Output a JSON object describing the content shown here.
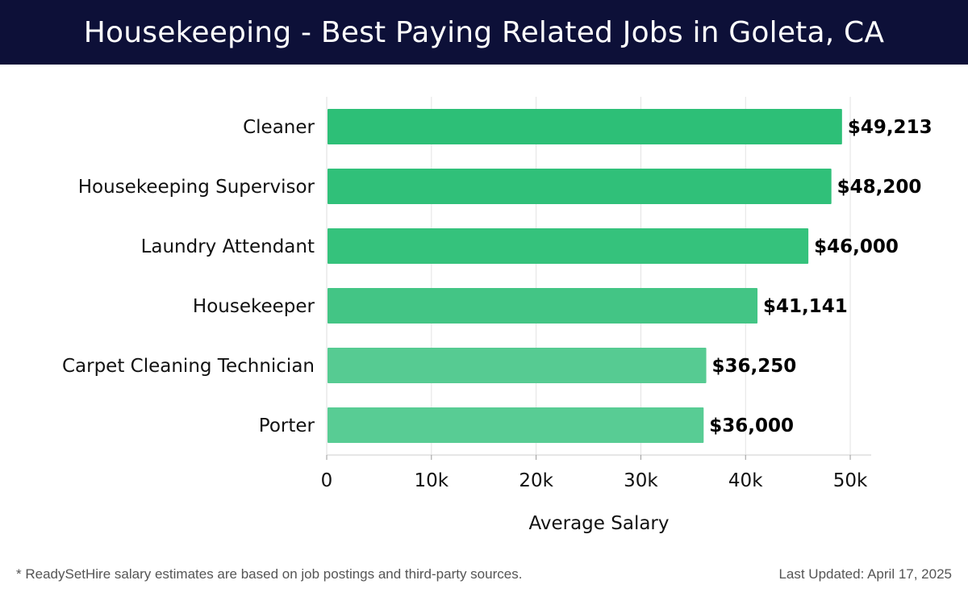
{
  "header": {
    "title": "Housekeeping - Best Paying Related Jobs in Goleta, CA"
  },
  "footer": {
    "note": "* ReadySetHire salary estimates are based on job postings and third-party sources.",
    "last_updated": "Last Updated: April 17, 2025"
  },
  "chart_data": {
    "type": "bar",
    "orientation": "horizontal",
    "title": "Housekeeping - Best Paying Related Jobs in Goleta, CA",
    "xlabel": "Average Salary",
    "ylabel": "",
    "categories": [
      "Cleaner",
      "Housekeeping Supervisor",
      "Laundry Attendant",
      "Housekeeper",
      "Carpet Cleaning Technician",
      "Porter"
    ],
    "values": [
      49213,
      48200,
      46000,
      41141,
      36250,
      36000
    ],
    "value_labels": [
      "$49,213",
      "$48,200",
      "$46,000",
      "$41,141",
      "$36,250",
      "$36,000"
    ],
    "xlim": [
      0,
      52000
    ],
    "x_ticks": [
      0,
      10000,
      20000,
      30000,
      40000,
      50000
    ],
    "x_tick_labels": [
      "0",
      "10k",
      "20k",
      "30k",
      "40k",
      "50k"
    ],
    "grid": "vertical",
    "bar_colors": [
      "#2dbf77",
      "#30c079",
      "#35c27c",
      "#43c585",
      "#56cb92",
      "#58cc94"
    ]
  }
}
